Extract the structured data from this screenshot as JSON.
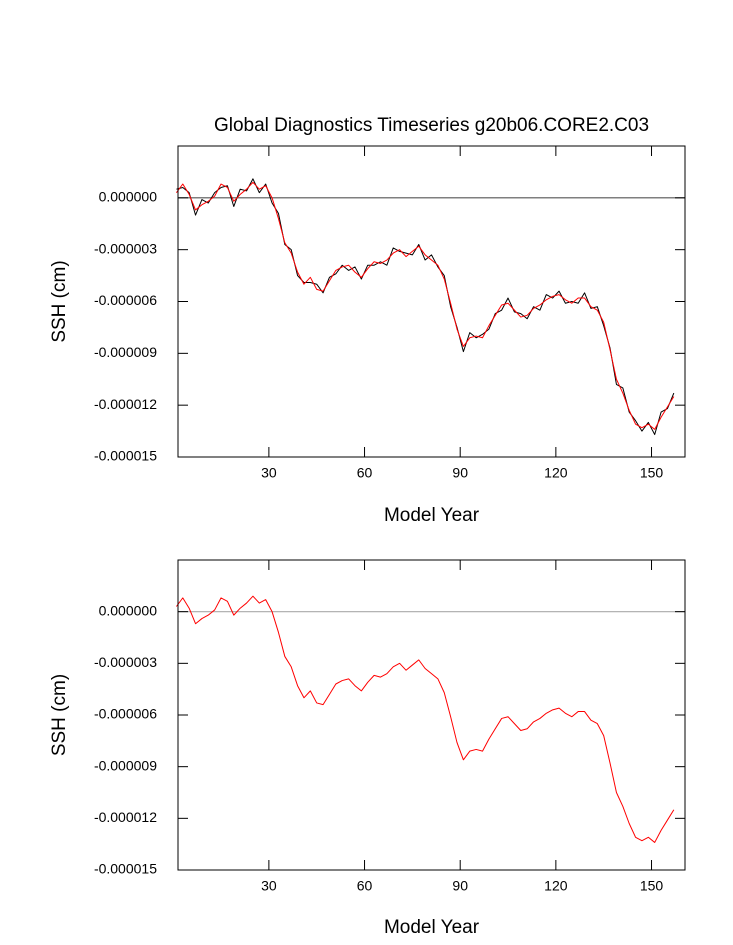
{
  "chart_data": [
    {
      "type": "line",
      "title": "Global Diagnostics Timeseries g20b06.CORE2.C03",
      "xlabel": "Model Year",
      "ylabel": "SSH (cm)",
      "x": [
        1,
        3,
        5,
        7,
        9,
        11,
        13,
        15,
        17,
        19,
        21,
        23,
        25,
        27,
        29,
        31,
        33,
        35,
        37,
        39,
        41,
        43,
        45,
        47,
        49,
        51,
        53,
        55,
        57,
        59,
        61,
        63,
        65,
        67,
        69,
        71,
        73,
        75,
        77,
        79,
        81,
        83,
        85,
        87,
        89,
        91,
        93,
        95,
        97,
        99,
        101,
        103,
        105,
        107,
        109,
        111,
        113,
        115,
        117,
        119,
        121,
        123,
        125,
        127,
        129,
        131,
        133,
        135,
        137,
        139,
        141,
        143,
        145,
        147,
        149,
        151,
        153,
        155,
        157
      ],
      "series": [
        {
          "color": "#000000",
          "values": [
            5e-07,
            6e-07,
            3e-07,
            -1e-06,
            -1e-07,
            -3e-07,
            3e-07,
            6e-07,
            7e-07,
            -5e-07,
            5e-07,
            4e-07,
            1.1e-06,
            3e-07,
            8e-07,
            -3e-07,
            -9e-07,
            -2.7e-06,
            -3e-06,
            -4.5e-06,
            -4.9e-06,
            -4.9e-06,
            -5e-06,
            -5.5e-06,
            -4.6e-06,
            -4.4e-06,
            -3.9e-06,
            -4.2e-06,
            -4e-06,
            -4.7e-06,
            -3.9e-06,
            -3.9e-06,
            -3.7e-06,
            -3.9e-06,
            -2.9e-06,
            -3.1e-06,
            -3.2e-06,
            -3.3e-06,
            -2.7e-06,
            -3.6e-06,
            -3.3e-06,
            -4e-06,
            -4.5e-06,
            -6.3e-06,
            -7.5e-06,
            -8.9e-06,
            -7.8e-06,
            -8.1e-06,
            -7.9e-06,
            -7.6e-06,
            -6.7e-06,
            -6.5e-06,
            -5.8e-06,
            -6.6e-06,
            -6.7e-06,
            -7e-06,
            -6.3e-06,
            -6.5e-06,
            -5.6e-06,
            -5.8e-06,
            -5.4e-06,
            -6.1e-06,
            -6e-06,
            -6.1e-06,
            -5.5e-06,
            -6.4e-06,
            -6.3e-06,
            -7.4e-06,
            -8.7e-06,
            -1.08e-05,
            -1.1e-05,
            -1.24e-05,
            -1.29e-05,
            -1.35e-05,
            -1.3e-05,
            -1.37e-05,
            -1.24e-05,
            -1.22e-05,
            -1.13e-05
          ]
        },
        {
          "color": "#ff0000",
          "values": [
            3e-07,
            8e-07,
            2e-07,
            -7e-07,
            -4e-07,
            -2e-07,
            1e-07,
            8e-07,
            6e-07,
            -2e-07,
            2e-07,
            5e-07,
            9e-07,
            5e-07,
            7e-07,
            0,
            -1.2e-06,
            -2.6e-06,
            -3.2e-06,
            -4.3e-06,
            -5e-06,
            -4.6e-06,
            -5.3e-06,
            -5.4e-06,
            -4.8e-06,
            -4.2e-06,
            -4e-06,
            -3.9e-06,
            -4.3e-06,
            -4.6e-06,
            -4.1e-06,
            -3.7e-06,
            -3.8e-06,
            -3.6e-06,
            -3.2e-06,
            -3e-06,
            -3.4e-06,
            -3.1e-06,
            -2.8e-06,
            -3.3e-06,
            -3.6e-06,
            -3.9e-06,
            -4.7e-06,
            -6.1e-06,
            -7.6e-06,
            -8.6e-06,
            -8.1e-06,
            -8e-06,
            -8.1e-06,
            -7.4e-06,
            -6.8e-06,
            -6.2e-06,
            -6.1e-06,
            -6.5e-06,
            -6.9e-06,
            -6.8e-06,
            -6.4e-06,
            -6.2e-06,
            -5.9e-06,
            -5.7e-06,
            -5.6e-06,
            -5.9e-06,
            -6.1e-06,
            -5.8e-06,
            -5.8e-06,
            -6.3e-06,
            -6.5e-06,
            -7.2e-06,
            -8.8e-06,
            -1.05e-05,
            -1.13e-05,
            -1.23e-05,
            -1.31e-05,
            -1.33e-05,
            -1.31e-05,
            -1.34e-05,
            -1.27e-05,
            -1.21e-05,
            -1.15e-05
          ]
        }
      ],
      "xlim": [
        1.5,
        160.5
      ],
      "ylim": [
        -1.5e-05,
        3e-06
      ],
      "xticks": [
        30,
        60,
        90,
        120,
        150
      ],
      "yticks": [
        {
          "value": -1.5e-05,
          "label": "-0.000015"
        },
        {
          "value": -1.2e-05,
          "label": "-0.000012"
        },
        {
          "value": -9e-06,
          "label": "-0.000009"
        },
        {
          "value": -6e-06,
          "label": "-0.000006"
        },
        {
          "value": -3e-06,
          "label": "-0.000003"
        },
        {
          "value": 0,
          "label": "0.000000"
        }
      ],
      "hline": 0,
      "hline_color": "#555555"
    },
    {
      "type": "line",
      "xlabel": "Model Year",
      "ylabel": "SSH (cm)",
      "x": [
        1,
        3,
        5,
        7,
        9,
        11,
        13,
        15,
        17,
        19,
        21,
        23,
        25,
        27,
        29,
        31,
        33,
        35,
        37,
        39,
        41,
        43,
        45,
        47,
        49,
        51,
        53,
        55,
        57,
        59,
        61,
        63,
        65,
        67,
        69,
        71,
        73,
        75,
        77,
        79,
        81,
        83,
        85,
        87,
        89,
        91,
        93,
        95,
        97,
        99,
        101,
        103,
        105,
        107,
        109,
        111,
        113,
        115,
        117,
        119,
        121,
        123,
        125,
        127,
        129,
        131,
        133,
        135,
        137,
        139,
        141,
        143,
        145,
        147,
        149,
        151,
        153,
        155,
        157
      ],
      "series": [
        {
          "color": "#ff0000",
          "values": [
            3e-07,
            8e-07,
            2e-07,
            -7e-07,
            -4e-07,
            -2e-07,
            1e-07,
            8e-07,
            6e-07,
            -2e-07,
            2e-07,
            5e-07,
            9e-07,
            5e-07,
            7e-07,
            0,
            -1.2e-06,
            -2.6e-06,
            -3.2e-06,
            -4.3e-06,
            -5e-06,
            -4.6e-06,
            -5.3e-06,
            -5.4e-06,
            -4.8e-06,
            -4.2e-06,
            -4e-06,
            -3.9e-06,
            -4.3e-06,
            -4.6e-06,
            -4.1e-06,
            -3.7e-06,
            -3.8e-06,
            -3.6e-06,
            -3.2e-06,
            -3e-06,
            -3.4e-06,
            -3.1e-06,
            -2.8e-06,
            -3.3e-06,
            -3.6e-06,
            -3.9e-06,
            -4.7e-06,
            -6.1e-06,
            -7.6e-06,
            -8.6e-06,
            -8.1e-06,
            -8e-06,
            -8.1e-06,
            -7.4e-06,
            -6.8e-06,
            -6.2e-06,
            -6.1e-06,
            -6.5e-06,
            -6.9e-06,
            -6.8e-06,
            -6.4e-06,
            -6.2e-06,
            -5.9e-06,
            -5.7e-06,
            -5.6e-06,
            -5.9e-06,
            -6.1e-06,
            -5.8e-06,
            -5.8e-06,
            -6.3e-06,
            -6.5e-06,
            -7.2e-06,
            -8.8e-06,
            -1.05e-05,
            -1.13e-05,
            -1.23e-05,
            -1.31e-05,
            -1.33e-05,
            -1.31e-05,
            -1.34e-05,
            -1.27e-05,
            -1.21e-05,
            -1.15e-05
          ]
        }
      ],
      "xlim": [
        1.5,
        160.5
      ],
      "ylim": [
        -1.5e-05,
        3e-06
      ],
      "xticks": [
        30,
        60,
        90,
        120,
        150
      ],
      "yticks": [
        {
          "value": -1.5e-05,
          "label": "-0.000015"
        },
        {
          "value": -1.2e-05,
          "label": "-0.000012"
        },
        {
          "value": -9e-06,
          "label": "-0.000009"
        },
        {
          "value": -6e-06,
          "label": "-0.000006"
        },
        {
          "value": -3e-06,
          "label": "-0.000003"
        },
        {
          "value": 0,
          "label": "0.000000"
        }
      ],
      "hline": 0,
      "hline_color": "#aaaaaa"
    }
  ]
}
